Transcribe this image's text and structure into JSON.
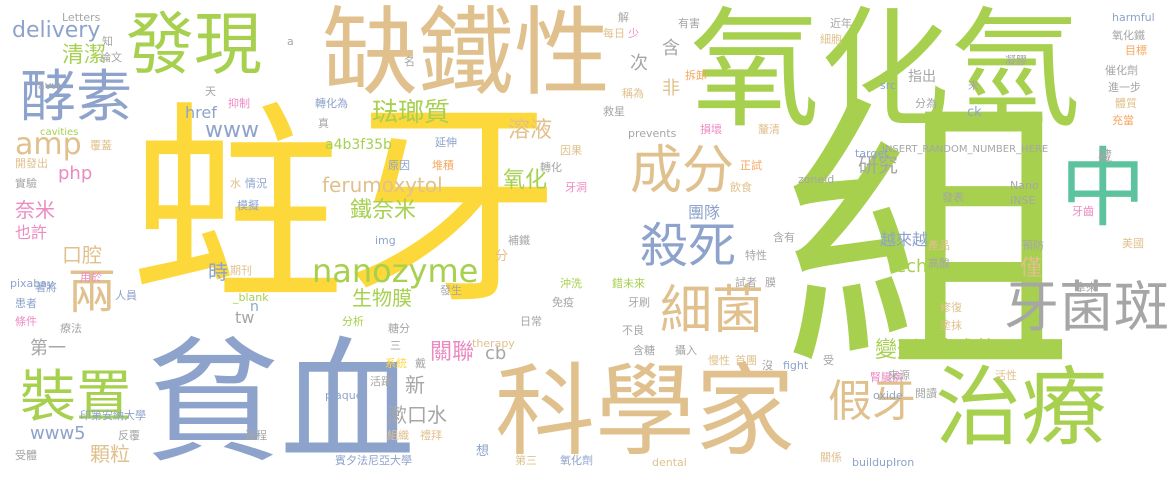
{
  "palette": {
    "yellow": "#fcd83a",
    "green": "#a6d04e",
    "blue": "#8ea3cb",
    "tan": "#e0c18e",
    "grey": "#a6a6a6",
    "orange": "#f6a65e",
    "pink": "#ec8ac2",
    "teal": "#5dc39e"
  },
  "words": [
    {
      "text": "蛀牙",
      "color": "#fcd83a"
    },
    {
      "text": "組",
      "color": "#a6d04e"
    },
    {
      "text": "氧化氫",
      "color": "#a6d04e"
    },
    {
      "text": "貧血",
      "color": "#8ea3cb"
    },
    {
      "text": "科學家",
      "color": "#e0c18e"
    },
    {
      "text": "缺鐵性",
      "color": "#e0c18e"
    },
    {
      "text": "發現",
      "color": "#a6d04e"
    },
    {
      "text": "治療",
      "color": "#a6d04e"
    },
    {
      "text": "中",
      "color": "#5dc39e"
    },
    {
      "text": "酵素",
      "color": "#8ea3cb"
    },
    {
      "text": "裝置",
      "color": "#a6d04e"
    },
    {
      "text": "牙菌斑",
      "color": "#a6a6a6"
    },
    {
      "text": "細菌",
      "color": "#e0c18e"
    },
    {
      "text": "成分",
      "color": "#e0c18e"
    },
    {
      "text": "殺死",
      "color": "#8ea3cb"
    },
    {
      "text": "兩",
      "color": "#e0c18e"
    },
    {
      "text": "假牙",
      "color": "#e0c18e"
    },
    {
      "text": "nanozyme",
      "color": "#a6d04e"
    },
    {
      "text": "琺瑯質",
      "color": "#a6d04e"
    },
    {
      "text": "delivery",
      "color": "#8ea3cb"
    },
    {
      "text": "清潔",
      "color": "#a6d04e"
    },
    {
      "text": "www",
      "color": "#8ea3cb"
    },
    {
      "text": "amp",
      "color": "#e0c18e"
    },
    {
      "text": "php",
      "color": "#ec8ac2"
    },
    {
      "text": "奈米",
      "color": "#ec8ac2"
    },
    {
      "text": "也許",
      "color": "#ec8ac2"
    },
    {
      "text": "口腔",
      "color": "#e0c18e"
    },
    {
      "text": "時",
      "color": "#8ea3cb"
    },
    {
      "text": "溶液",
      "color": "#e0c18e"
    },
    {
      "text": "ferumoxytol",
      "color": "#e0c18e"
    },
    {
      "text": "氧化",
      "color": "#a6d04e"
    },
    {
      "text": "團隊",
      "color": "#8ea3cb"
    },
    {
      "text": "鐵奈米",
      "color": "#a6d04e"
    },
    {
      "text": "technews",
      "color": "#a6d04e"
    },
    {
      "text": "越來越",
      "color": "#8ea3cb"
    },
    {
      "text": "研究",
      "color": "#a6a6a6"
    },
    {
      "text": "僅",
      "color": "#e0c18e"
    },
    {
      "text": "變形",
      "color": "#a6d04e"
    },
    {
      "text": "鏈球菌",
      "color": "#a6d04e"
    },
    {
      "text": "生物膜",
      "color": "#a6d04e"
    },
    {
      "text": "關聯",
      "color": "#ec8ac2"
    },
    {
      "text": "新",
      "color": "#a6a6a6"
    },
    {
      "text": "漱口水",
      "color": "#a6a6a6"
    },
    {
      "text": "www5",
      "color": "#8ea3cb"
    },
    {
      "text": "顆粒",
      "color": "#e0c18e"
    },
    {
      "text": "第一",
      "color": "#a6a6a6"
    },
    {
      "text": "tw",
      "color": "#a6a6a6"
    },
    {
      "text": "cb",
      "color": "#a6a6a6"
    },
    {
      "text": "a4b3f35b",
      "color": "#a6d04e"
    },
    {
      "text": "INSERT_RANDOM_NUMBER_HERE",
      "color": "#a6a6a6"
    },
    {
      "text": "含",
      "color": "#a6a6a6"
    },
    {
      "text": "非",
      "color": "#e0c18e"
    },
    {
      "text": "次",
      "color": "#a6a6a6"
    },
    {
      "text": "href",
      "color": "#8ea3cb"
    },
    {
      "text": "Letters",
      "color": "#a6a6a6"
    },
    {
      "text": "cavities",
      "color": "#a6d04e"
    },
    {
      "text": "pixabay",
      "color": "#8ea3cb"
    },
    {
      "text": "zoneid",
      "color": "#a6a6a6"
    },
    {
      "text": "target",
      "color": "#8ea3cb"
    },
    {
      "text": "prevents",
      "color": "#a6a6a6"
    },
    {
      "text": "plaque",
      "color": "#8ea3cb"
    },
    {
      "text": "therapy",
      "color": "#e0c18e"
    },
    {
      "text": "fight",
      "color": "#8ea3cb"
    },
    {
      "text": "oxide",
      "color": "#8ea3cb"
    },
    {
      "text": "dental",
      "color": "#e0c18e"
    },
    {
      "text": "buildupIron",
      "color": "#8ea3cb"
    },
    {
      "text": "harmful",
      "color": "#8ea3cb"
    },
    {
      "text": "src",
      "color": "#8ea3cb"
    },
    {
      "text": "ck",
      "color": "#8ea3cb"
    },
    {
      "text": "Nano",
      "color": "#a6a6a6"
    },
    {
      "text": "INSE",
      "color": "#a6a6a6"
    },
    {
      "text": "_blank",
      "color": "#a6d04e"
    },
    {
      "text": "n",
      "color": "#8ea3cb"
    },
    {
      "text": "avw",
      "color": "#a6a6a6"
    },
    {
      "text": "img",
      "color": "#8ea3cb"
    },
    {
      "text": "a",
      "color": "#a6a6a6"
    },
    {
      "text": "分",
      "color": "#e0c18e"
    },
    {
      "text": "印第安納大學",
      "color": "#8ea3cb"
    },
    {
      "text": "賓夕法尼亞大學",
      "color": "#8ea3cb"
    },
    {
      "text": "想",
      "color": "#8ea3cb"
    },
    {
      "text": "氧化劑",
      "color": "#8ea3cb"
    },
    {
      "text": "第三",
      "color": "#e0c18e"
    },
    {
      "text": "期刊",
      "color": "#e0c18e"
    },
    {
      "text": "人員",
      "color": "#8ea3cb"
    },
    {
      "text": "患者",
      "color": "#8ea3cb"
    },
    {
      "text": "條件",
      "color": "#ec8ac2"
    },
    {
      "text": "療法",
      "color": "#a6a6a6"
    },
    {
      "text": "分析",
      "color": "#a6d04e"
    },
    {
      "text": "糖分",
      "color": "#a6a6a6"
    },
    {
      "text": "三",
      "color": "#a6a6a6"
    },
    {
      "text": "系統",
      "color": "#fcd83a"
    },
    {
      "text": "戴",
      "color": "#a6a6a6"
    },
    {
      "text": "活躍",
      "color": "#a6a6a6"
    },
    {
      "text": "組織",
      "color": "#e0c18e"
    },
    {
      "text": "過程",
      "color": "#a6a6a6"
    },
    {
      "text": "受體",
      "color": "#a6a6a6"
    },
    {
      "text": "反覆",
      "color": "#a6a6a6"
    },
    {
      "text": "禮拜",
      "color": "#e0c18e"
    },
    {
      "text": "關係",
      "color": "#e0c18e"
    },
    {
      "text": "著將",
      "color": "#8ea3cb"
    },
    {
      "text": "用於",
      "color": "#ec8ac2"
    },
    {
      "text": "實驗",
      "color": "#a6a6a6"
    },
    {
      "text": "開發出",
      "color": "#e0c18e"
    },
    {
      "text": "覆蓋",
      "color": "#e0c18e"
    },
    {
      "text": "抑制",
      "color": "#ec8ac2"
    },
    {
      "text": "轉化為",
      "color": "#8ea3cb"
    },
    {
      "text": "天",
      "color": "#a6a6a6"
    },
    {
      "text": "論文",
      "color": "#a6a6a6"
    },
    {
      "text": "知",
      "color": "#a6a6a6"
    },
    {
      "text": "名",
      "color": "#a6a6a6"
    },
    {
      "text": "原因",
      "color": "#8ea3cb"
    },
    {
      "text": "堆積",
      "color": "#f6a65e"
    },
    {
      "text": "延伸",
      "color": "#8ea3cb"
    },
    {
      "text": "因果",
      "color": "#e0c18e"
    },
    {
      "text": "轉化",
      "color": "#a6a6a6"
    },
    {
      "text": "牙洞",
      "color": "#ec8ac2"
    },
    {
      "text": "真",
      "color": "#a6a6a6"
    },
    {
      "text": "水",
      "color": "#e0c18e"
    },
    {
      "text": "情況",
      "color": "#8ea3cb"
    },
    {
      "text": "模擬",
      "color": "#8ea3cb"
    },
    {
      "text": "每日",
      "color": "#e0c18e"
    },
    {
      "text": "少",
      "color": "#ec8ac2"
    },
    {
      "text": "解",
      "color": "#a6a6a6"
    },
    {
      "text": "稱為",
      "color": "#e0c18e"
    },
    {
      "text": "拆卸",
      "color": "#f6a65e"
    },
    {
      "text": "救星",
      "color": "#a6a6a6"
    },
    {
      "text": "損壞",
      "color": "#ec8ac2"
    },
    {
      "text": "釐清",
      "color": "#e0c18e"
    },
    {
      "text": "正試",
      "color": "#f6a65e"
    },
    {
      "text": "飲食",
      "color": "#e0c18e"
    },
    {
      "text": "有害",
      "color": "#a6a6a6"
    },
    {
      "text": "近年",
      "color": "#a6a6a6"
    },
    {
      "text": "細胞",
      "color": "#e0c18e"
    },
    {
      "text": "指出",
      "color": "#a6a6a6"
    },
    {
      "text": "分為",
      "color": "#a6a6a6"
    },
    {
      "text": "未",
      "color": "#a6a6a6"
    },
    {
      "text": "凝膠",
      "color": "#a6a6a6"
    },
    {
      "text": "補鐵",
      "color": "#a6a6a6"
    },
    {
      "text": "發生",
      "color": "#a6a6a6"
    },
    {
      "text": "沖洗",
      "color": "#a6d04e"
    },
    {
      "text": "錯未來",
      "color": "#a6d04e"
    },
    {
      "text": "免疫",
      "color": "#a6a6a6"
    },
    {
      "text": "日常",
      "color": "#a6a6a6"
    },
    {
      "text": "牙刷",
      "color": "#a6a6a6"
    },
    {
      "text": "不良",
      "color": "#a6a6a6"
    },
    {
      "text": "含糖",
      "color": "#a6a6a6"
    },
    {
      "text": "攝入",
      "color": "#a6a6a6"
    },
    {
      "text": "慢性",
      "color": "#e0c18e"
    },
    {
      "text": "首團",
      "color": "#e0c18e"
    },
    {
      "text": "沒",
      "color": "#a6a6a6"
    },
    {
      "text": "受",
      "color": "#a6a6a6"
    },
    {
      "text": "腎臟病",
      "color": "#ec8ac2"
    },
    {
      "text": "來源",
      "color": "#a6a6a6"
    },
    {
      "text": "閱讀",
      "color": "#a6a6a6"
    },
    {
      "text": "活性",
      "color": "#e0c18e"
    },
    {
      "text": "修復",
      "color": "#e0c18e"
    },
    {
      "text": "塗抹",
      "color": "#e0c18e"
    },
    {
      "text": "拿來",
      "color": "#a6a6a6"
    },
    {
      "text": "試者",
      "color": "#a6a6a6"
    },
    {
      "text": "膜",
      "color": "#a6a6a6"
    },
    {
      "text": "特性",
      "color": "#a6a6a6"
    },
    {
      "text": "含有",
      "color": "#a6a6a6"
    },
    {
      "text": "產品",
      "color": "#e0c18e"
    },
    {
      "text": "高酸",
      "color": "#a6a6a6"
    },
    {
      "text": "發表",
      "color": "#a6a6a6"
    },
    {
      "text": "預防",
      "color": "#a6a6a6"
    },
    {
      "text": "牙齒",
      "color": "#ec8ac2"
    },
    {
      "text": "美國",
      "color": "#e0c18e"
    },
    {
      "text": "目標",
      "color": "#f6a65e"
    },
    {
      "text": "氧化鐵",
      "color": "#a6a6a6"
    },
    {
      "text": "催化劑",
      "color": "#a6a6a6"
    },
    {
      "text": "進一步",
      "color": "#a6a6a6"
    },
    {
      "text": "體質",
      "color": "#e0c18e"
    },
    {
      "text": "充當",
      "color": "#f6a65e"
    },
    {
      "text": "藏",
      "color": "#a6a6a6"
    }
  ]
}
